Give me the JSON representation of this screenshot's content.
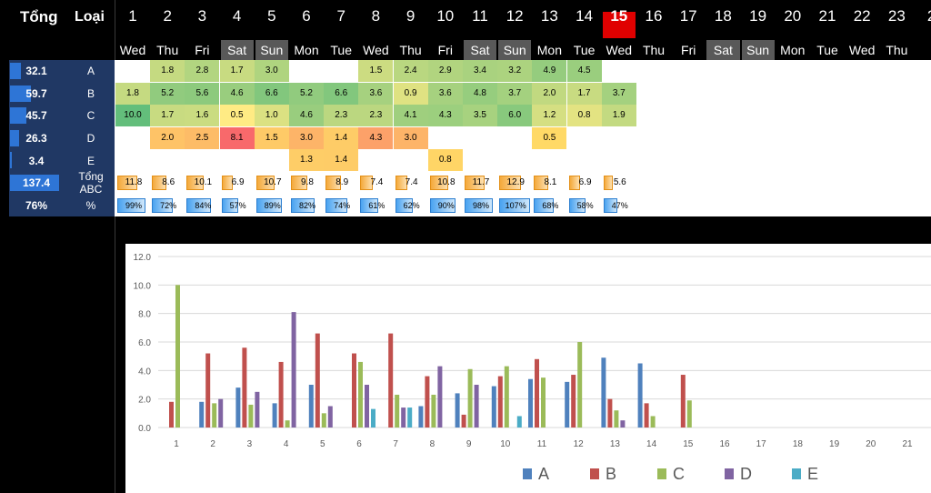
{
  "header": {
    "col1": "Tổng",
    "col2": "Loại"
  },
  "days": [
    {
      "num": "1",
      "name": "Wed",
      "weekend": false
    },
    {
      "num": "2",
      "name": "Thu",
      "weekend": false
    },
    {
      "num": "3",
      "name": "Fri",
      "weekend": false
    },
    {
      "num": "4",
      "name": "Sat",
      "weekend": true
    },
    {
      "num": "5",
      "name": "Sun",
      "weekend": true
    },
    {
      "num": "6",
      "name": "Mon",
      "weekend": false
    },
    {
      "num": "7",
      "name": "Tue",
      "weekend": false
    },
    {
      "num": "8",
      "name": "Wed",
      "weekend": false
    },
    {
      "num": "9",
      "name": "Thu",
      "weekend": false
    },
    {
      "num": "10",
      "name": "Fri",
      "weekend": false
    },
    {
      "num": "11",
      "name": "Sat",
      "weekend": true
    },
    {
      "num": "12",
      "name": "Sun",
      "weekend": true
    },
    {
      "num": "13",
      "name": "Mon",
      "weekend": false
    },
    {
      "num": "14",
      "name": "Tue",
      "weekend": false
    },
    {
      "num": "15",
      "name": "Wed",
      "weekend": false,
      "today": true
    },
    {
      "num": "16",
      "name": "Thu",
      "weekend": false
    },
    {
      "num": "17",
      "name": "Fri",
      "weekend": false
    },
    {
      "num": "18",
      "name": "Sat",
      "weekend": true
    },
    {
      "num": "19",
      "name": "Sun",
      "weekend": true
    },
    {
      "num": "20",
      "name": "Mon",
      "weekend": false
    },
    {
      "num": "21",
      "name": "Tue",
      "weekend": false
    },
    {
      "num": "22",
      "name": "Wed",
      "weekend": false
    },
    {
      "num": "23",
      "name": "Thu",
      "weekend": false
    },
    {
      "num": "2",
      "name": "",
      "weekend": false
    }
  ],
  "rows": [
    {
      "total": "32.1",
      "total_fill": 0.23,
      "category": "A",
      "values": [
        null,
        "1.8",
        "2.8",
        "1.7",
        "3.0",
        null,
        null,
        "1.5",
        "2.4",
        "2.9",
        "3.4",
        "3.2",
        "4.9",
        "4.5",
        null
      ]
    },
    {
      "total": "59.7",
      "total_fill": 0.43,
      "category": "B",
      "values": [
        "1.8",
        "5.2",
        "5.6",
        "4.6",
        "6.6",
        "5.2",
        "6.6",
        "3.6",
        "0.9",
        "3.6",
        "4.8",
        "3.7",
        "2.0",
        "1.7",
        "3.7"
      ]
    },
    {
      "total": "45.7",
      "total_fill": 0.33,
      "category": "C",
      "values": [
        "10.0",
        "1.7",
        "1.6",
        "0.5",
        "1.0",
        "4.6",
        "2.3",
        "2.3",
        "4.1",
        "4.3",
        "3.5",
        "6.0",
        "1.2",
        "0.8",
        "1.9"
      ]
    },
    {
      "total": "26.3",
      "total_fill": 0.19,
      "category": "D",
      "values": [
        null,
        "2.0",
        "2.5",
        "8.1",
        "1.5",
        "3.0",
        "1.4",
        "4.3",
        "3.0",
        null,
        null,
        null,
        "0.5",
        null,
        null
      ]
    },
    {
      "total": "3.4",
      "total_fill": 0.03,
      "category": "E",
      "values": [
        null,
        null,
        null,
        null,
        null,
        "1.3",
        "1.4",
        null,
        null,
        "0.8",
        null,
        null,
        null,
        null,
        null
      ]
    }
  ],
  "sum_row": {
    "total": "137.4",
    "total_fill": 1.0,
    "label": "Tổng ABC",
    "values": [
      "11.8",
      "8.6",
      "10.1",
      "6.9",
      "10.7",
      "9.8",
      "8.9",
      "7.4",
      "7.4",
      "10.8",
      "11.7",
      "12.9",
      "8.1",
      "6.9",
      "5.6"
    ],
    "fills": [
      0.91,
      0.67,
      0.78,
      0.53,
      0.83,
      0.76,
      0.69,
      0.57,
      0.57,
      0.84,
      0.91,
      1.0,
      0.63,
      0.53,
      0.43
    ]
  },
  "pct_row": {
    "total": "76%",
    "total_fill": 0,
    "label": "%",
    "values": [
      "99%",
      "72%",
      "84%",
      "57%",
      "89%",
      "82%",
      "74%",
      "61%",
      "62%",
      "90%",
      "98%",
      "107%",
      "68%",
      "58%",
      "47%"
    ],
    "fills": [
      0.92,
      0.67,
      0.79,
      0.53,
      0.83,
      0.77,
      0.69,
      0.57,
      0.58,
      0.84,
      0.92,
      1.0,
      0.64,
      0.54,
      0.44
    ]
  },
  "colors": {
    "header_bg": "#000000",
    "panel_bg": "#203864",
    "weekend": "#595959",
    "today": "#e00000",
    "heat_low": "#63be7b",
    "heat_mid": "#ffeb84",
    "heat_high": "#f8696b"
  },
  "chart_data": {
    "type": "bar",
    "categories": [
      "1",
      "2",
      "3",
      "4",
      "5",
      "6",
      "7",
      "8",
      "9",
      "10",
      "11",
      "12",
      "13",
      "14",
      "15",
      "16",
      "17",
      "18",
      "19",
      "20",
      "21"
    ],
    "series": [
      {
        "name": "A",
        "color": "#4f81bd",
        "values": [
          0,
          1.8,
          2.8,
          1.7,
          3.0,
          0,
          0,
          1.5,
          2.4,
          2.9,
          3.4,
          3.2,
          4.9,
          4.5,
          0,
          0,
          0,
          0,
          0,
          0,
          0
        ]
      },
      {
        "name": "B",
        "color": "#c0504d",
        "values": [
          1.8,
          5.2,
          5.6,
          4.6,
          6.6,
          5.2,
          6.6,
          3.6,
          0.9,
          3.6,
          4.8,
          3.7,
          2.0,
          1.7,
          3.7,
          0,
          0,
          0,
          0,
          0,
          0
        ]
      },
      {
        "name": "C",
        "color": "#9bbb59",
        "values": [
          10.0,
          1.7,
          1.6,
          0.5,
          1.0,
          4.6,
          2.3,
          2.3,
          4.1,
          4.3,
          3.5,
          6.0,
          1.2,
          0.8,
          1.9,
          0,
          0,
          0,
          0,
          0,
          0
        ]
      },
      {
        "name": "D",
        "color": "#8064a2",
        "values": [
          0,
          2.0,
          2.5,
          8.1,
          1.5,
          3.0,
          1.4,
          4.3,
          3.0,
          0,
          0,
          0,
          0.5,
          0,
          0,
          0,
          0,
          0,
          0,
          0,
          0
        ]
      },
      {
        "name": "E",
        "color": "#4bacc6",
        "values": [
          0,
          0,
          0,
          0,
          0,
          1.3,
          1.4,
          0,
          0,
          0.8,
          0,
          0,
          0,
          0,
          0,
          0,
          0,
          0,
          0,
          0,
          0
        ]
      }
    ],
    "ylim": [
      0,
      12
    ],
    "yticks": [
      "0.0",
      "2.0",
      "4.0",
      "6.0",
      "8.0",
      "10.0",
      "12.0"
    ],
    "grid": true,
    "legend": "bottom"
  }
}
